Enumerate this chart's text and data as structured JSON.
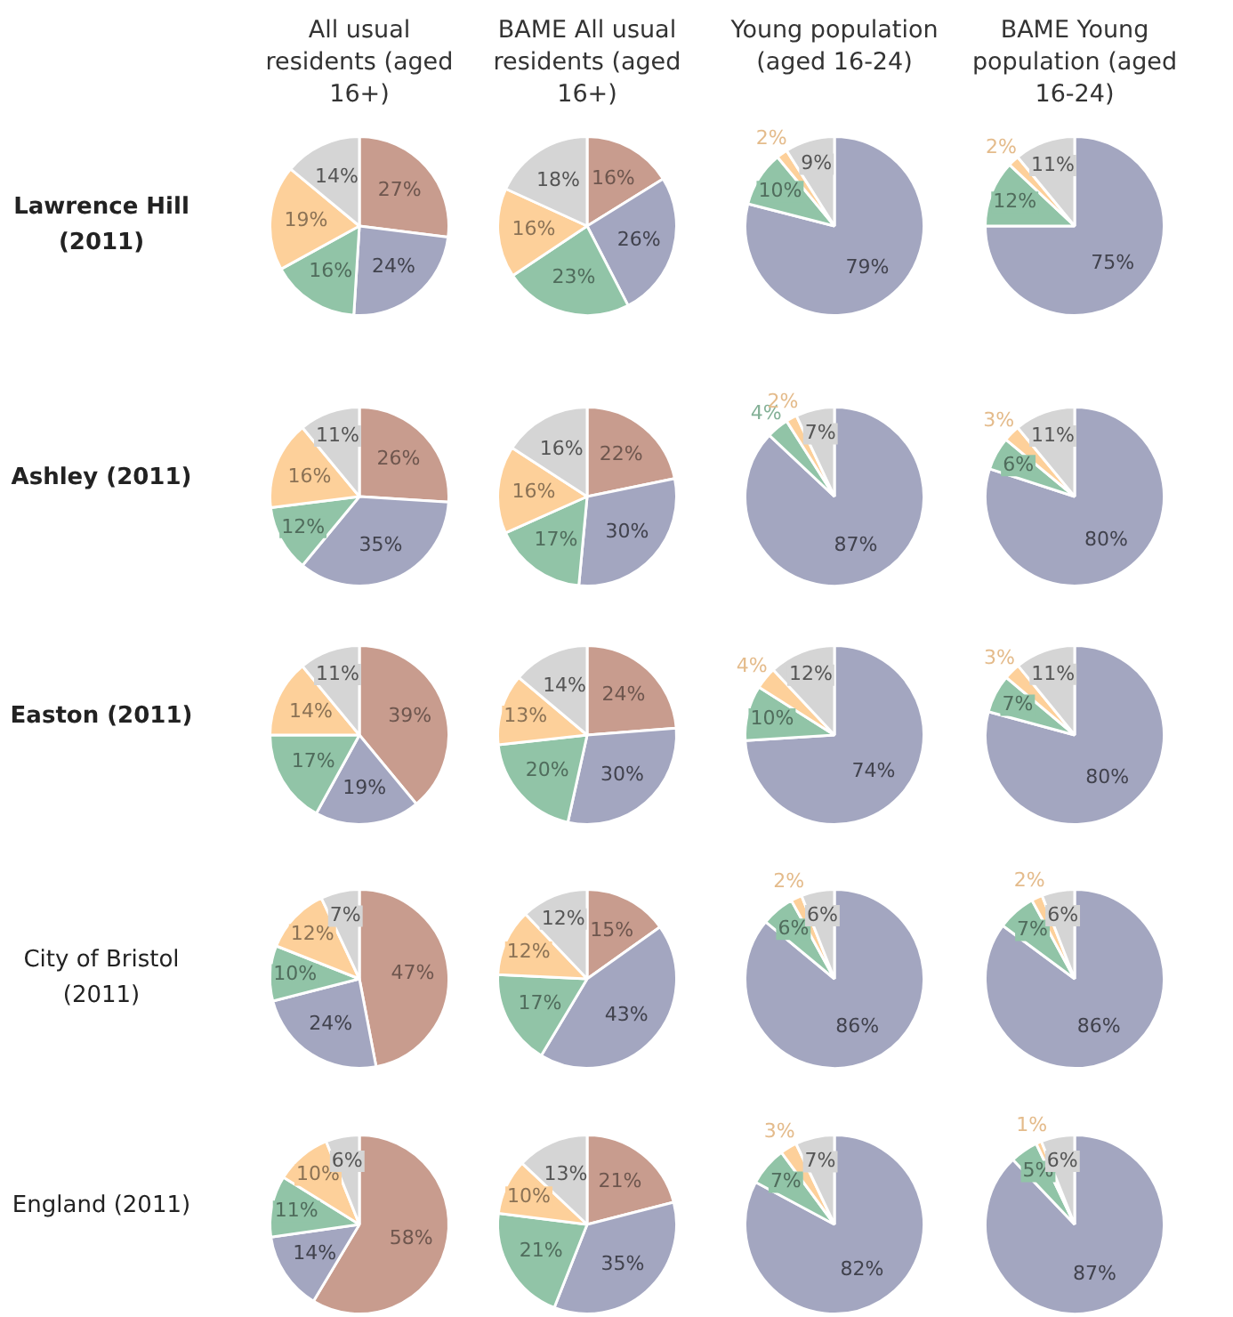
{
  "chart_data": [
    {
      "type": "pie",
      "title": "All usual residents (aged 16+)",
      "ylabel": "Lawrence Hill (2011)",
      "categories": [
        null,
        null,
        null,
        null,
        null
      ],
      "values": [
        27,
        24,
        16,
        19,
        14
      ],
      "colors": [
        "#c89c8e",
        "#a3a6c0",
        "#91c4a7",
        "#fdd09a",
        "#d5d5d5"
      ],
      "value_labels": [
        "27%",
        "24%",
        "16%",
        "19%",
        "14%"
      ]
    },
    {
      "type": "pie",
      "title": "BAME All usual residents (aged 16+)",
      "categories": [
        null,
        null,
        null,
        null,
        null
      ],
      "values": [
        16,
        26,
        23,
        16,
        18
      ],
      "colors": [
        "#c89c8e",
        "#a3a6c0",
        "#91c4a7",
        "#fdd09a",
        "#d5d5d5"
      ],
      "value_labels": [
        "16%",
        "26%",
        "23%",
        "16%",
        "18%"
      ]
    },
    {
      "type": "pie",
      "title": "Young population (aged 16-24)",
      "categories": [
        null,
        null,
        null,
        null
      ],
      "values": [
        79,
        10,
        2,
        9
      ],
      "colors": [
        "#a3a6c0",
        "#91c4a7",
        "#fdd09a",
        "#d5d5d5"
      ],
      "value_labels": [
        "79%",
        "10%",
        "2%",
        "9%"
      ]
    },
    {
      "type": "pie",
      "title": "BAME Young population (aged 16-24)",
      "categories": [
        null,
        null,
        null,
        null
      ],
      "values": [
        75,
        12,
        2,
        11
      ],
      "colors": [
        "#a3a6c0",
        "#91c4a7",
        "#fdd09a",
        "#d5d5d5"
      ],
      "value_labels": [
        "75%",
        "12%",
        "2%",
        "11%"
      ]
    },
    {
      "type": "pie",
      "ylabel": "Ashley (2011)",
      "categories": [
        null,
        null,
        null,
        null,
        null
      ],
      "values": [
        26,
        35,
        12,
        16,
        11
      ],
      "colors": [
        "#c89c8e",
        "#a3a6c0",
        "#91c4a7",
        "#fdd09a",
        "#d5d5d5"
      ],
      "value_labels": [
        "26%",
        "35%",
        "12%",
        "16%",
        "11%"
      ]
    },
    {
      "type": "pie",
      "categories": [
        null,
        null,
        null,
        null,
        null
      ],
      "values": [
        22,
        30,
        17,
        16,
        16
      ],
      "colors": [
        "#c89c8e",
        "#a3a6c0",
        "#91c4a7",
        "#fdd09a",
        "#d5d5d5"
      ],
      "value_labels": [
        "22%",
        "30%",
        "17%",
        "16%",
        "16%"
      ]
    },
    {
      "type": "pie",
      "categories": [
        null,
        null,
        null,
        null
      ],
      "values": [
        87,
        4,
        2,
        7
      ],
      "colors": [
        "#a3a6c0",
        "#91c4a7",
        "#fdd09a",
        "#d5d5d5"
      ],
      "value_labels": [
        "87%",
        "4%",
        "2%",
        "7%"
      ]
    },
    {
      "type": "pie",
      "categories": [
        null,
        null,
        null,
        null
      ],
      "values": [
        80,
        6,
        3,
        11
      ],
      "colors": [
        "#a3a6c0",
        "#91c4a7",
        "#fdd09a",
        "#d5d5d5"
      ],
      "value_labels": [
        "80%",
        "6%",
        "3%",
        "11%"
      ]
    },
    {
      "type": "pie",
      "ylabel": "Easton (2011)",
      "categories": [
        null,
        null,
        null,
        null,
        null
      ],
      "values": [
        39,
        19,
        17,
        14,
        11
      ],
      "colors": [
        "#c89c8e",
        "#a3a6c0",
        "#91c4a7",
        "#fdd09a",
        "#d5d5d5"
      ],
      "value_labels": [
        "39%",
        "19%",
        "17%",
        "14%",
        "11%"
      ]
    },
    {
      "type": "pie",
      "categories": [
        null,
        null,
        null,
        null,
        null
      ],
      "values": [
        24,
        30,
        20,
        13,
        14
      ],
      "colors": [
        "#c89c8e",
        "#a3a6c0",
        "#91c4a7",
        "#fdd09a",
        "#d5d5d5"
      ],
      "value_labels": [
        "24%",
        "30%",
        "20%",
        "13%",
        "14%"
      ]
    },
    {
      "type": "pie",
      "categories": [
        null,
        null,
        null,
        null
      ],
      "values": [
        74,
        10,
        4,
        12
      ],
      "colors": [
        "#a3a6c0",
        "#91c4a7",
        "#fdd09a",
        "#d5d5d5"
      ],
      "value_labels": [
        "74%",
        "10%",
        "4%",
        "12%"
      ]
    },
    {
      "type": "pie",
      "categories": [
        null,
        null,
        null,
        null
      ],
      "values": [
        80,
        7,
        3,
        11
      ],
      "colors": [
        "#a3a6c0",
        "#91c4a7",
        "#fdd09a",
        "#d5d5d5"
      ],
      "value_labels": [
        "80%",
        "7%",
        "3%",
        "11%"
      ]
    },
    {
      "type": "pie",
      "ylabel": "City of Bristol (2011)",
      "categories": [
        null,
        null,
        null,
        null,
        null
      ],
      "values": [
        47,
        24,
        10,
        12,
        7
      ],
      "colors": [
        "#c89c8e",
        "#a3a6c0",
        "#91c4a7",
        "#fdd09a",
        "#d5d5d5"
      ],
      "value_labels": [
        "47%",
        "24%",
        "10%",
        "12%",
        "7%"
      ]
    },
    {
      "type": "pie",
      "categories": [
        null,
        null,
        null,
        null,
        null
      ],
      "values": [
        15,
        43,
        17,
        12,
        12
      ],
      "colors": [
        "#c89c8e",
        "#a3a6c0",
        "#91c4a7",
        "#fdd09a",
        "#d5d5d5"
      ],
      "value_labels": [
        "15%",
        "43%",
        "17%",
        "12%",
        "12%"
      ]
    },
    {
      "type": "pie",
      "categories": [
        null,
        null,
        null,
        null
      ],
      "values": [
        86,
        6,
        2,
        6
      ],
      "colors": [
        "#a3a6c0",
        "#91c4a7",
        "#fdd09a",
        "#d5d5d5"
      ],
      "value_labels": [
        "86%",
        "6%",
        "2%",
        "6%"
      ]
    },
    {
      "type": "pie",
      "categories": [
        null,
        null,
        null,
        null
      ],
      "values": [
        86,
        7,
        2,
        6
      ],
      "colors": [
        "#a3a6c0",
        "#91c4a7",
        "#fdd09a",
        "#d5d5d5"
      ],
      "value_labels": [
        "86%",
        "7%",
        "2%",
        "6%"
      ]
    },
    {
      "type": "pie",
      "ylabel": "England (2011)",
      "categories": [
        null,
        null,
        null,
        null,
        null
      ],
      "values": [
        58,
        14,
        11,
        10,
        6
      ],
      "colors": [
        "#c89c8e",
        "#a3a6c0",
        "#91c4a7",
        "#fdd09a",
        "#d5d5d5"
      ],
      "value_labels": [
        "58%",
        "14%",
        "11%",
        "10%",
        "6%"
      ]
    },
    {
      "type": "pie",
      "categories": [
        null,
        null,
        null,
        null,
        null
      ],
      "values": [
        21,
        35,
        21,
        10,
        13
      ],
      "colors": [
        "#c89c8e",
        "#a3a6c0",
        "#91c4a7",
        "#fdd09a",
        "#d5d5d5"
      ],
      "value_labels": [
        "21%",
        "35%",
        "21%",
        "10%",
        "13%"
      ]
    },
    {
      "type": "pie",
      "categories": [
        null,
        null,
        null,
        null
      ],
      "values": [
        82,
        7,
        3,
        7
      ],
      "colors": [
        "#a3a6c0",
        "#91c4a7",
        "#fdd09a",
        "#d5d5d5"
      ],
      "value_labels": [
        "82%",
        "7%",
        "3%",
        "7%"
      ]
    },
    {
      "type": "pie",
      "categories": [
        null,
        null,
        null,
        null
      ],
      "values": [
        87,
        5,
        1,
        6
      ],
      "colors": [
        "#a3a6c0",
        "#91c4a7",
        "#fdd09a",
        "#d5d5d5"
      ],
      "value_labels": [
        "87%",
        "5%",
        "1%",
        "6%"
      ]
    }
  ]
}
